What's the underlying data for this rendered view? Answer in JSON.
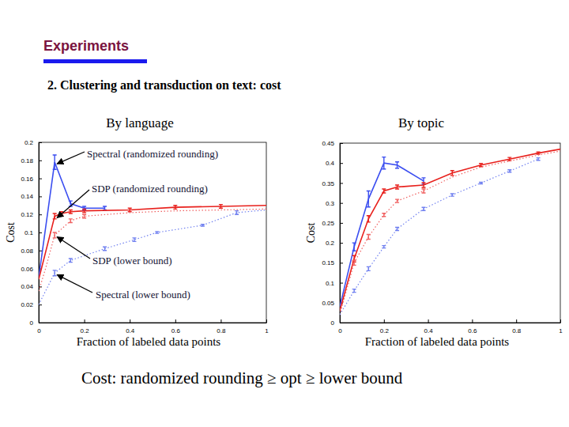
{
  "header": {
    "title": "Experiments",
    "subtitle": "2. Clustering and transduction on text: cost"
  },
  "chart_data": [
    {
      "type": "line",
      "title": "By language",
      "x_label": "Fraction of labeled data points",
      "y_label": "Cost",
      "xlim": [
        0,
        1
      ],
      "xticks": [
        0,
        0.2,
        0.4,
        0.6,
        0.8,
        1
      ],
      "ylim": [
        0,
        0.2
      ],
      "yticks": [
        0,
        0.02,
        0.04,
        0.06,
        0.08,
        0.1,
        0.12,
        0.14,
        0.16,
        0.18,
        0.2
      ],
      "grid": false,
      "series": [
        {
          "name": "Spectral (randomized rounding)",
          "color": "#3b4ef0",
          "line_style": "solid",
          "x": [
            0,
            0.07,
            0.14,
            0.2,
            0.29
          ],
          "values": [
            0.05,
            0.178,
            0.132,
            0.127,
            0.127
          ],
          "errors": [
            null,
            0.008,
            0.003,
            0.002,
            0.002
          ]
        },
        {
          "name": "SDP (randomized rounding)",
          "color": "#e8201c",
          "line_style": "solid",
          "x": [
            0,
            0.07,
            0.1,
            0.14,
            0.2,
            0.4,
            0.6,
            0.8,
            1
          ],
          "values": [
            0.048,
            0.118,
            0.121,
            0.123,
            0.124,
            0.125,
            0.128,
            0.129,
            0.13
          ],
          "errors": [
            null,
            0.003,
            0.002,
            0.002,
            0.002,
            0.002,
            0.002,
            0.002,
            null
          ]
        },
        {
          "name": "SDP (lower bound)",
          "color": "#f06060",
          "line_style": "dotted",
          "x": [
            0,
            0.03,
            0.07,
            0.14,
            0.2,
            0.4,
            0.6,
            0.8,
            1
          ],
          "values": [
            0.035,
            0.06,
            0.097,
            0.113,
            0.118,
            0.122,
            0.124,
            0.125,
            0.126
          ],
          "errors": [
            null,
            null,
            0.003,
            0.002,
            0.002,
            null,
            null,
            null,
            null
          ]
        },
        {
          "name": "Spectral (lower bound)",
          "color": "#7080f0",
          "line_style": "dotted",
          "x": [
            0,
            0.07,
            0.14,
            0.29,
            0.42,
            0.52,
            0.72,
            0.87,
            1
          ],
          "values": [
            0.02,
            0.055,
            0.069,
            0.082,
            0.092,
            0.1,
            0.108,
            0.122,
            0.125
          ],
          "errors": [
            null,
            0.003,
            0.002,
            0.002,
            0.002,
            0.001,
            0.001,
            0.002,
            null
          ]
        }
      ]
    },
    {
      "type": "line",
      "title": "By topic",
      "x_label": "Fraction of labeled data points",
      "y_label": "Cost",
      "xlim": [
        0,
        1
      ],
      "xticks": [
        0,
        0.2,
        0.4,
        0.6,
        0.8,
        1
      ],
      "ylim": [
        0,
        0.45
      ],
      "yticks": [
        0,
        0.05,
        0.1,
        0.15,
        0.2,
        0.25,
        0.3,
        0.35,
        0.4,
        0.45
      ],
      "grid": false,
      "series": [
        {
          "color": "#3b4ef0",
          "line_style": "solid",
          "x": [
            0,
            0.065,
            0.13,
            0.2,
            0.26,
            0.38
          ],
          "values": [
            0.04,
            0.19,
            0.31,
            0.4,
            0.395,
            0.355
          ],
          "errors": [
            null,
            0.01,
            0.02,
            0.015,
            0.008,
            0.008
          ]
        },
        {
          "color": "#e8201c",
          "line_style": "solid",
          "x": [
            0,
            0.065,
            0.13,
            0.2,
            0.26,
            0.38,
            0.51,
            0.64,
            0.77,
            0.9,
            1
          ],
          "values": [
            0.03,
            0.16,
            0.26,
            0.33,
            0.34,
            0.345,
            0.375,
            0.395,
            0.41,
            0.425,
            0.435
          ],
          "errors": [
            null,
            0.008,
            0.008,
            0.005,
            0.005,
            0.006,
            0.006,
            0.004,
            0.004,
            0.003,
            null
          ]
        },
        {
          "color": "#f06060",
          "line_style": "dotted",
          "x": [
            0,
            0.065,
            0.13,
            0.2,
            0.26,
            0.38,
            0.51,
            0.64,
            0.77,
            0.9,
            1
          ],
          "values": [
            0.02,
            0.15,
            0.215,
            0.27,
            0.305,
            0.33,
            0.365,
            0.39,
            0.405,
            0.42,
            0.43
          ],
          "errors": [
            null,
            0.006,
            0.006,
            0.004,
            0.004,
            0.005,
            null,
            null,
            null,
            null,
            null
          ]
        },
        {
          "color": "#7080f0",
          "line_style": "dotted",
          "x": [
            0,
            0.065,
            0.13,
            0.2,
            0.26,
            0.38,
            0.51,
            0.64,
            0.77,
            0.9
          ],
          "values": [
            0.02,
            0.08,
            0.135,
            0.19,
            0.235,
            0.285,
            0.32,
            0.35,
            0.38,
            0.41
          ],
          "errors": [
            null,
            0.004,
            0.005,
            0.003,
            0.004,
            0.004,
            0.003,
            0.002,
            0.003,
            0.003
          ]
        }
      ]
    }
  ],
  "footer": {
    "text": "Cost: randomized rounding ≥ opt ≥ lower bound"
  }
}
